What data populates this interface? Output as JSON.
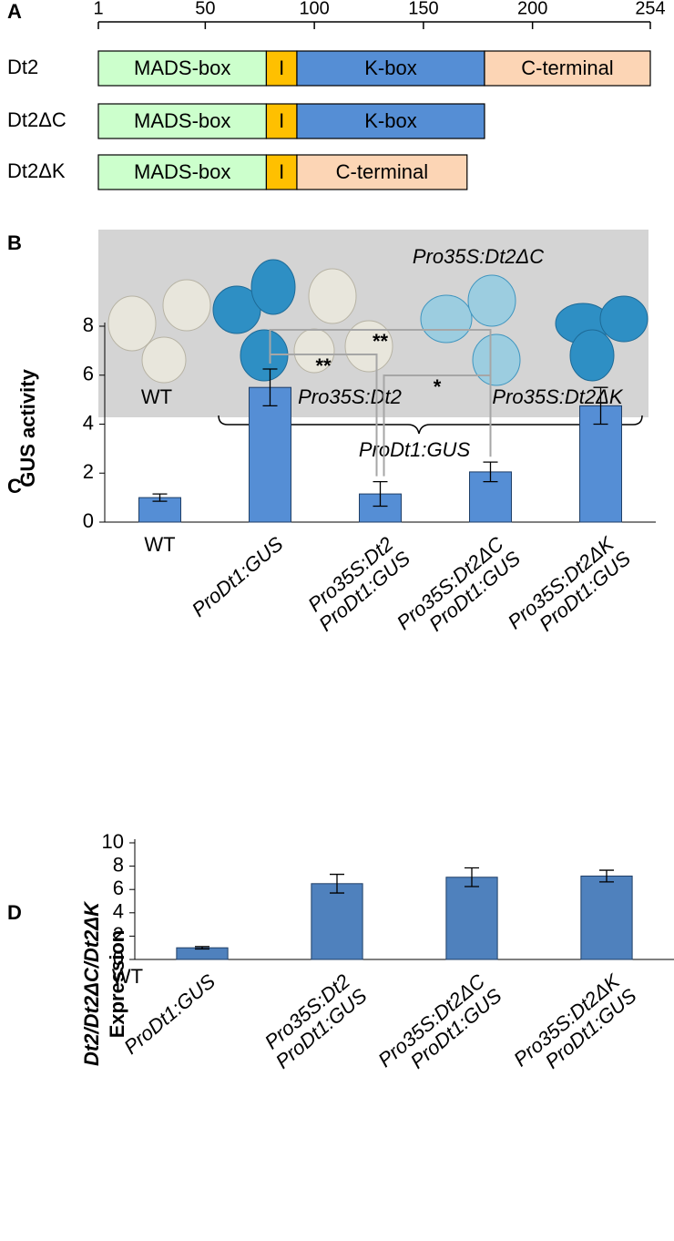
{
  "panels": [
    "A",
    "B",
    "C",
    "D"
  ],
  "panel_b": {
    "labels": [
      "Pro35S:Dt2ΔC",
      "WT",
      "Pro35S:Dt2",
      "Pro35S:Dt2ΔK"
    ],
    "group_label": "ProDt1:GUS"
  },
  "chart_data": [
    {
      "type": "domain",
      "xlim": [
        1,
        254
      ],
      "xticks": [
        1,
        50,
        100,
        150,
        200,
        254
      ],
      "constructs": [
        {
          "name": "Dt2",
          "domains": [
            {
              "label": "MADS-box",
              "start": 1,
              "end": 78,
              "color": "#ccffcc"
            },
            {
              "label": "I",
              "start": 78,
              "end": 92,
              "color": "#ffc000"
            },
            {
              "label": "K-box",
              "start": 92,
              "end": 178,
              "color": "#558ed5"
            },
            {
              "label": "C-terminal",
              "start": 178,
              "end": 254,
              "color": "#fcd5b5"
            }
          ]
        },
        {
          "name": "Dt2ΔC",
          "domains": [
            {
              "label": "MADS-box",
              "start": 1,
              "end": 78,
              "color": "#ccffcc"
            },
            {
              "label": "I",
              "start": 78,
              "end": 92,
              "color": "#ffc000"
            },
            {
              "label": "K-box",
              "start": 92,
              "end": 178,
              "color": "#558ed5"
            }
          ]
        },
        {
          "name": "Dt2ΔK",
          "domains": [
            {
              "label": "MADS-box",
              "start": 1,
              "end": 78,
              "color": "#ccffcc"
            },
            {
              "label": "I",
              "start": 78,
              "end": 92,
              "color": "#ffc000"
            },
            {
              "label": "C-terminal",
              "start": 92,
              "end": 170,
              "color": "#fcd5b5"
            }
          ]
        }
      ]
    },
    {
      "type": "bar",
      "ylabel": "GUS activity",
      "ylim": [
        0,
        8
      ],
      "yticks": [
        0,
        2,
        4,
        6,
        8
      ],
      "color": "#558ed5",
      "categories": [
        [
          "WT"
        ],
        [
          "ProDt1:GUS"
        ],
        [
          "Pro35S:Dt2",
          "ProDt1:GUS"
        ],
        [
          "Pro35S:Dt2ΔC",
          "ProDt1:GUS"
        ],
        [
          "Pro35S:Dt2ΔK",
          "ProDt1:GUS"
        ]
      ],
      "values": [
        1.0,
        5.5,
        1.15,
        2.05,
        4.75
      ],
      "errors": [
        0.15,
        0.75,
        0.5,
        0.4,
        0.75
      ],
      "annotations": [
        {
          "text": "**",
          "from": 1,
          "to": 2
        },
        {
          "text": "**",
          "from": 1,
          "to": 3
        },
        {
          "text": "*",
          "from": 2,
          "to": 3
        }
      ]
    },
    {
      "type": "bar",
      "ylabel": [
        "Dt2/Dt2ΔC/Dt2ΔK",
        "Expression"
      ],
      "ylim": [
        0,
        10
      ],
      "yticks": [
        0,
        2,
        4,
        6,
        8,
        10
      ],
      "color": "#4f81bd",
      "note": "WT",
      "categories": [
        [
          "ProDt1:GUS"
        ],
        [
          "Pro35S:Dt2",
          "ProDt1:GUS"
        ],
        [
          "Pro35S:Dt2ΔC",
          "ProDt1:GUS"
        ],
        [
          "Pro35S:Dt2ΔK",
          "ProDt1:GUS"
        ]
      ],
      "values": [
        1.0,
        6.5,
        7.05,
        7.15
      ],
      "errors": [
        0.1,
        0.8,
        0.8,
        0.5
      ]
    }
  ]
}
